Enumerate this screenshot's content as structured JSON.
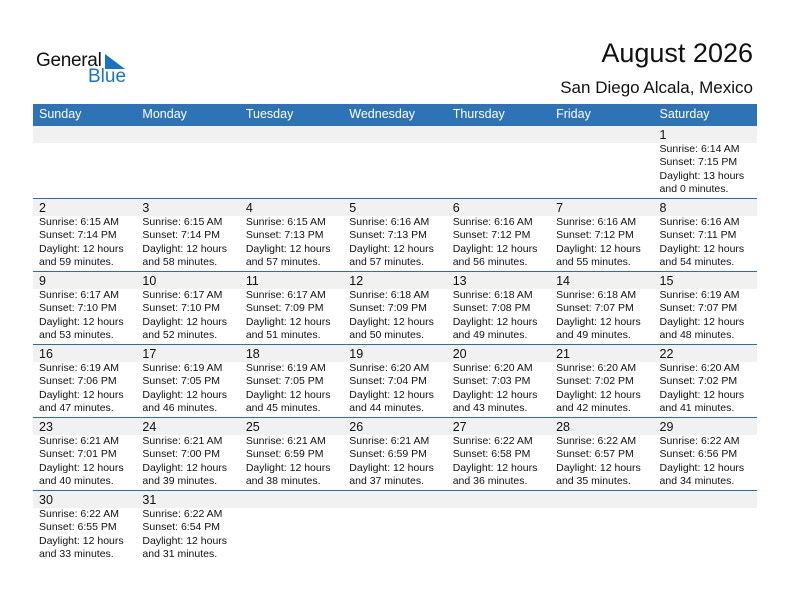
{
  "logo": {
    "text_general": "General",
    "text_blue": "Blue"
  },
  "header": {
    "title": "August 2026",
    "location": "San Diego Alcala, Mexico"
  },
  "colors": {
    "header_bg": "#2e73b5",
    "logo_blue": "#1a73c4",
    "date_strip": "#f1f1f1"
  },
  "weekdays": [
    "Sunday",
    "Monday",
    "Tuesday",
    "Wednesday",
    "Thursday",
    "Friday",
    "Saturday"
  ],
  "weeks": [
    [
      null,
      null,
      null,
      null,
      null,
      null,
      {
        "day": "1",
        "sunrise": "Sunrise: 6:14 AM",
        "sunset": "Sunset: 7:15 PM",
        "daylight1": "Daylight: 13 hours",
        "daylight2": "and 0 minutes."
      }
    ],
    [
      {
        "day": "2",
        "sunrise": "Sunrise: 6:15 AM",
        "sunset": "Sunset: 7:14 PM",
        "daylight1": "Daylight: 12 hours",
        "daylight2": "and 59 minutes."
      },
      {
        "day": "3",
        "sunrise": "Sunrise: 6:15 AM",
        "sunset": "Sunset: 7:14 PM",
        "daylight1": "Daylight: 12 hours",
        "daylight2": "and 58 minutes."
      },
      {
        "day": "4",
        "sunrise": "Sunrise: 6:15 AM",
        "sunset": "Sunset: 7:13 PM",
        "daylight1": "Daylight: 12 hours",
        "daylight2": "and 57 minutes."
      },
      {
        "day": "5",
        "sunrise": "Sunrise: 6:16 AM",
        "sunset": "Sunset: 7:13 PM",
        "daylight1": "Daylight: 12 hours",
        "daylight2": "and 57 minutes."
      },
      {
        "day": "6",
        "sunrise": "Sunrise: 6:16 AM",
        "sunset": "Sunset: 7:12 PM",
        "daylight1": "Daylight: 12 hours",
        "daylight2": "and 56 minutes."
      },
      {
        "day": "7",
        "sunrise": "Sunrise: 6:16 AM",
        "sunset": "Sunset: 7:12 PM",
        "daylight1": "Daylight: 12 hours",
        "daylight2": "and 55 minutes."
      },
      {
        "day": "8",
        "sunrise": "Sunrise: 6:16 AM",
        "sunset": "Sunset: 7:11 PM",
        "daylight1": "Daylight: 12 hours",
        "daylight2": "and 54 minutes."
      }
    ],
    [
      {
        "day": "9",
        "sunrise": "Sunrise: 6:17 AM",
        "sunset": "Sunset: 7:10 PM",
        "daylight1": "Daylight: 12 hours",
        "daylight2": "and 53 minutes."
      },
      {
        "day": "10",
        "sunrise": "Sunrise: 6:17 AM",
        "sunset": "Sunset: 7:10 PM",
        "daylight1": "Daylight: 12 hours",
        "daylight2": "and 52 minutes."
      },
      {
        "day": "11",
        "sunrise": "Sunrise: 6:17 AM",
        "sunset": "Sunset: 7:09 PM",
        "daylight1": "Daylight: 12 hours",
        "daylight2": "and 51 minutes."
      },
      {
        "day": "12",
        "sunrise": "Sunrise: 6:18 AM",
        "sunset": "Sunset: 7:09 PM",
        "daylight1": "Daylight: 12 hours",
        "daylight2": "and 50 minutes."
      },
      {
        "day": "13",
        "sunrise": "Sunrise: 6:18 AM",
        "sunset": "Sunset: 7:08 PM",
        "daylight1": "Daylight: 12 hours",
        "daylight2": "and 49 minutes."
      },
      {
        "day": "14",
        "sunrise": "Sunrise: 6:18 AM",
        "sunset": "Sunset: 7:07 PM",
        "daylight1": "Daylight: 12 hours",
        "daylight2": "and 49 minutes."
      },
      {
        "day": "15",
        "sunrise": "Sunrise: 6:19 AM",
        "sunset": "Sunset: 7:07 PM",
        "daylight1": "Daylight: 12 hours",
        "daylight2": "and 48 minutes."
      }
    ],
    [
      {
        "day": "16",
        "sunrise": "Sunrise: 6:19 AM",
        "sunset": "Sunset: 7:06 PM",
        "daylight1": "Daylight: 12 hours",
        "daylight2": "and 47 minutes."
      },
      {
        "day": "17",
        "sunrise": "Sunrise: 6:19 AM",
        "sunset": "Sunset: 7:05 PM",
        "daylight1": "Daylight: 12 hours",
        "daylight2": "and 46 minutes."
      },
      {
        "day": "18",
        "sunrise": "Sunrise: 6:19 AM",
        "sunset": "Sunset: 7:05 PM",
        "daylight1": "Daylight: 12 hours",
        "daylight2": "and 45 minutes."
      },
      {
        "day": "19",
        "sunrise": "Sunrise: 6:20 AM",
        "sunset": "Sunset: 7:04 PM",
        "daylight1": "Daylight: 12 hours",
        "daylight2": "and 44 minutes."
      },
      {
        "day": "20",
        "sunrise": "Sunrise: 6:20 AM",
        "sunset": "Sunset: 7:03 PM",
        "daylight1": "Daylight: 12 hours",
        "daylight2": "and 43 minutes."
      },
      {
        "day": "21",
        "sunrise": "Sunrise: 6:20 AM",
        "sunset": "Sunset: 7:02 PM",
        "daylight1": "Daylight: 12 hours",
        "daylight2": "and 42 minutes."
      },
      {
        "day": "22",
        "sunrise": "Sunrise: 6:20 AM",
        "sunset": "Sunset: 7:02 PM",
        "daylight1": "Daylight: 12 hours",
        "daylight2": "and 41 minutes."
      }
    ],
    [
      {
        "day": "23",
        "sunrise": "Sunrise: 6:21 AM",
        "sunset": "Sunset: 7:01 PM",
        "daylight1": "Daylight: 12 hours",
        "daylight2": "and 40 minutes."
      },
      {
        "day": "24",
        "sunrise": "Sunrise: 6:21 AM",
        "sunset": "Sunset: 7:00 PM",
        "daylight1": "Daylight: 12 hours",
        "daylight2": "and 39 minutes."
      },
      {
        "day": "25",
        "sunrise": "Sunrise: 6:21 AM",
        "sunset": "Sunset: 6:59 PM",
        "daylight1": "Daylight: 12 hours",
        "daylight2": "and 38 minutes."
      },
      {
        "day": "26",
        "sunrise": "Sunrise: 6:21 AM",
        "sunset": "Sunset: 6:59 PM",
        "daylight1": "Daylight: 12 hours",
        "daylight2": "and 37 minutes."
      },
      {
        "day": "27",
        "sunrise": "Sunrise: 6:22 AM",
        "sunset": "Sunset: 6:58 PM",
        "daylight1": "Daylight: 12 hours",
        "daylight2": "and 36 minutes."
      },
      {
        "day": "28",
        "sunrise": "Sunrise: 6:22 AM",
        "sunset": "Sunset: 6:57 PM",
        "daylight1": "Daylight: 12 hours",
        "daylight2": "and 35 minutes."
      },
      {
        "day": "29",
        "sunrise": "Sunrise: 6:22 AM",
        "sunset": "Sunset: 6:56 PM",
        "daylight1": "Daylight: 12 hours",
        "daylight2": "and 34 minutes."
      }
    ],
    [
      {
        "day": "30",
        "sunrise": "Sunrise: 6:22 AM",
        "sunset": "Sunset: 6:55 PM",
        "daylight1": "Daylight: 12 hours",
        "daylight2": "and 33 minutes."
      },
      {
        "day": "31",
        "sunrise": "Sunrise: 6:22 AM",
        "sunset": "Sunset: 6:54 PM",
        "daylight1": "Daylight: 12 hours",
        "daylight2": "and 31 minutes."
      },
      null,
      null,
      null,
      null,
      null
    ]
  ]
}
